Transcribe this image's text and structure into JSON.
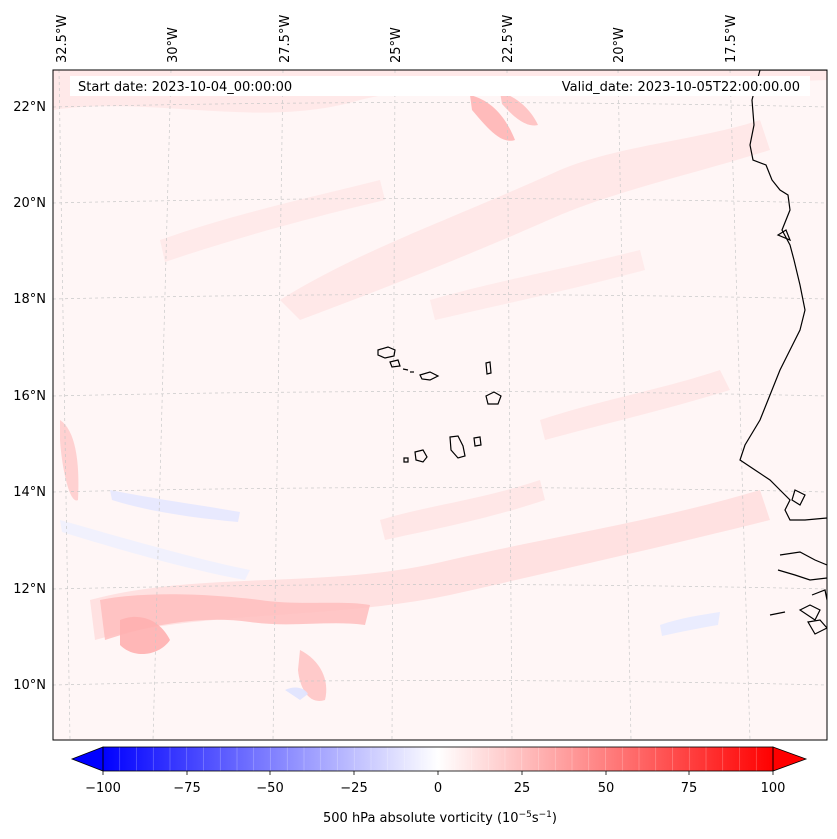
{
  "map": {
    "start_label": "Start date: 2023-10-04_00:00:00",
    "valid_label": "Valid_date: 2023-10-05T22:00:00.00",
    "lon_labels": [
      "32.5°W",
      "30°W",
      "27.5°W",
      "25°W",
      "22.5°W",
      "20°W",
      "17.5°W"
    ],
    "lat_labels": [
      "22°N",
      "20°N",
      "18°N",
      "16°N",
      "14°N",
      "12°N",
      "10°N"
    ]
  },
  "colorbar": {
    "title": "500 hPa absolute vorticity (10",
    "title_exp1": "−5",
    "title_mid": "s",
    "title_exp2": "−1",
    "title_end": ")",
    "ticks": [
      "−100",
      "−75",
      "−50",
      "−25",
      "0",
      "25",
      "50",
      "75",
      "100"
    ],
    "range": [
      -100,
      100
    ],
    "low_color": "#0000ff",
    "mid_color": "#ffffff",
    "high_color": "#ff0000"
  },
  "colors": {
    "coast": "#000000",
    "grid": "#bbbbbb",
    "background": "#fff5f5"
  }
}
